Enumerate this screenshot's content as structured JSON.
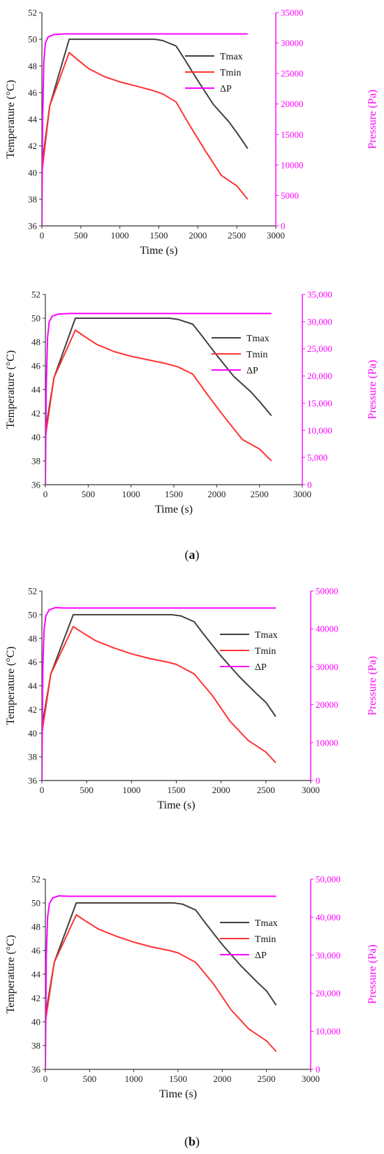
{
  "colors": {
    "tmax": "#404040",
    "tmin": "#ff3333",
    "dp": "#ff00ff",
    "axis": "#333333"
  },
  "figure_labels": {
    "a_open": "(",
    "a_letter": "a",
    "a_close": ")",
    "b_open": "(",
    "b_letter": "b",
    "b_close": ")"
  },
  "chart_data": [
    {
      "type": "line",
      "xlabel": "Time (s)",
      "ylabel": "Temperature (°C)",
      "y2label": "Pressure (Pa)",
      "xlim": [
        0,
        3000
      ],
      "ylim": [
        36,
        52
      ],
      "y2lim": [
        0,
        35000
      ],
      "xticks": [
        "0",
        "500",
        "1000",
        "1500",
        "2000",
        "2500",
        "3000"
      ],
      "yticks": [
        "36",
        "38",
        "40",
        "42",
        "44",
        "46",
        "48",
        "50",
        "52"
      ],
      "y2ticks": [
        "0",
        "5000",
        "10000",
        "15000",
        "20000",
        "25000",
        "30000",
        "35000"
      ],
      "y2tick_values": [
        0,
        5000,
        10000,
        15000,
        20000,
        25000,
        30000,
        35000
      ],
      "legend": "top-right",
      "series": [
        {
          "name": "Tmax",
          "axis": "left",
          "x": [
            0,
            100,
            350,
            600,
            1000,
            1450,
            1550,
            1720,
            1830,
            2000,
            2200,
            2400,
            2500,
            2640
          ],
          "y": [
            40.5,
            45.0,
            50.0,
            50.0,
            50.0,
            50.0,
            49.9,
            49.5,
            48.5,
            46.9,
            45.1,
            43.8,
            43.0,
            41.8
          ]
        },
        {
          "name": "Tmin",
          "axis": "left",
          "x": [
            0,
            100,
            350,
            450,
            600,
            800,
            1000,
            1200,
            1400,
            1550,
            1720,
            1900,
            2100,
            2300,
            2500,
            2640
          ],
          "y": [
            40.0,
            45.0,
            49.0,
            48.5,
            47.8,
            47.2,
            46.8,
            46.5,
            46.2,
            45.9,
            45.3,
            43.5,
            41.6,
            39.8,
            39.0,
            38.0
          ]
        },
        {
          "name": "ΔP",
          "axis": "right",
          "x": [
            0,
            10,
            25,
            45,
            80,
            150,
            300,
            2640
          ],
          "y": [
            0,
            18000,
            27000,
            30000,
            31000,
            31400,
            31500,
            31500
          ]
        }
      ]
    },
    {
      "type": "line",
      "xlabel": "Time (s)",
      "ylabel": "Temperature (°C)",
      "y2label": "Pressure (Pa)",
      "xlim": [
        0,
        3000
      ],
      "ylim": [
        36,
        52
      ],
      "y2lim": [
        0,
        35000
      ],
      "xticks": [
        "0",
        "500",
        "1000",
        "1500",
        "2000",
        "2500",
        "3000"
      ],
      "yticks": [
        "36",
        "38",
        "40",
        "42",
        "44",
        "46",
        "48",
        "50",
        "52"
      ],
      "y2ticks": [
        "0",
        "5,000",
        "10,000",
        "15,000",
        "20,000",
        "25,000",
        "30,000",
        "35,000"
      ],
      "y2tick_values": [
        0,
        5000,
        10000,
        15000,
        20000,
        25000,
        30000,
        35000
      ],
      "legend": "top-right",
      "series": [
        {
          "name": "Tmax",
          "axis": "left",
          "x": [
            0,
            100,
            350,
            600,
            1000,
            1450,
            1550,
            1720,
            1830,
            2000,
            2200,
            2400,
            2500,
            2640
          ],
          "y": [
            40.5,
            45.0,
            50.0,
            50.0,
            50.0,
            50.0,
            49.9,
            49.5,
            48.5,
            46.9,
            45.1,
            43.8,
            43.0,
            41.8
          ]
        },
        {
          "name": "Tmin",
          "axis": "left",
          "x": [
            0,
            100,
            350,
            450,
            600,
            800,
            1000,
            1200,
            1400,
            1550,
            1720,
            1900,
            2100,
            2300,
            2500,
            2640
          ],
          "y": [
            40.0,
            45.0,
            49.0,
            48.5,
            47.8,
            47.2,
            46.8,
            46.5,
            46.2,
            45.9,
            45.3,
            43.5,
            41.6,
            39.8,
            39.0,
            38.0
          ]
        },
        {
          "name": "ΔP",
          "axis": "right",
          "x": [
            0,
            10,
            25,
            45,
            80,
            150,
            300,
            2640
          ],
          "y": [
            0,
            18000,
            27000,
            30000,
            31000,
            31400,
            31500,
            31500
          ]
        }
      ]
    },
    {
      "type": "line",
      "xlabel": "Time (s)",
      "ylabel": "Temperature (°C)",
      "y2label": "Pressure (Pa)",
      "xlim": [
        0,
        3000
      ],
      "ylim": [
        36,
        52
      ],
      "y2lim": [
        0,
        50000
      ],
      "xticks": [
        "0",
        "500",
        "1000",
        "1500",
        "2000",
        "2500",
        "3000"
      ],
      "yticks": [
        "36",
        "38",
        "40",
        "42",
        "44",
        "46",
        "48",
        "50",
        "52"
      ],
      "y2ticks": [
        "0",
        "10000",
        "20000",
        "30000",
        "40000",
        "50000"
      ],
      "y2tick_values": [
        0,
        10000,
        20000,
        30000,
        40000,
        50000
      ],
      "legend": "top-right",
      "series": [
        {
          "name": "Tmax",
          "axis": "left",
          "x": [
            0,
            100,
            350,
            600,
            1000,
            1450,
            1550,
            1700,
            1800,
            2000,
            2200,
            2400,
            2500,
            2610
          ],
          "y": [
            40.5,
            45.0,
            50.0,
            50.0,
            50.0,
            50.0,
            49.9,
            49.4,
            48.4,
            46.5,
            44.8,
            43.3,
            42.6,
            41.4
          ]
        },
        {
          "name": "Tmin",
          "axis": "left",
          "x": [
            0,
            100,
            350,
            450,
            600,
            800,
            1000,
            1200,
            1400,
            1500,
            1700,
            1900,
            2100,
            2300,
            2500,
            2610
          ],
          "y": [
            40.0,
            45.0,
            49.0,
            48.5,
            47.8,
            47.2,
            46.7,
            46.3,
            46.0,
            45.8,
            45.0,
            43.2,
            41.0,
            39.4,
            38.4,
            37.5
          ]
        },
        {
          "name": "ΔP",
          "axis": "right",
          "x": [
            0,
            10,
            25,
            45,
            80,
            150,
            250,
            2610
          ],
          "y": [
            0,
            30000,
            40000,
            43500,
            45000,
            45600,
            45500,
            45500
          ]
        }
      ]
    },
    {
      "type": "line",
      "xlabel": "Time (s)",
      "ylabel": "Temperature (°C)",
      "y2label": "Pressure (Pa)",
      "xlim": [
        0,
        3000
      ],
      "ylim": [
        36,
        52
      ],
      "y2lim": [
        0,
        50000
      ],
      "xticks": [
        "0",
        "500",
        "1000",
        "1500",
        "2000",
        "2500",
        "3000"
      ],
      "yticks": [
        "36",
        "38",
        "40",
        "42",
        "44",
        "46",
        "48",
        "50",
        "52"
      ],
      "y2ticks": [
        "0",
        "10,000",
        "20,000",
        "30,000",
        "40,000",
        "50,000"
      ],
      "y2tick_values": [
        0,
        10000,
        20000,
        30000,
        40000,
        50000
      ],
      "legend": "top-right",
      "series": [
        {
          "name": "Tmax",
          "axis": "left",
          "x": [
            0,
            100,
            350,
            600,
            1000,
            1450,
            1550,
            1700,
            1800,
            2000,
            2200,
            2400,
            2500,
            2610
          ],
          "y": [
            40.5,
            45.0,
            50.0,
            50.0,
            50.0,
            50.0,
            49.9,
            49.4,
            48.4,
            46.5,
            44.8,
            43.3,
            42.6,
            41.4
          ]
        },
        {
          "name": "Tmin",
          "axis": "left",
          "x": [
            0,
            100,
            350,
            450,
            600,
            800,
            1000,
            1200,
            1400,
            1500,
            1700,
            1900,
            2100,
            2300,
            2500,
            2610
          ],
          "y": [
            40.0,
            45.0,
            49.0,
            48.5,
            47.8,
            47.2,
            46.7,
            46.3,
            46.0,
            45.8,
            45.0,
            43.2,
            41.0,
            39.4,
            38.4,
            37.5
          ]
        },
        {
          "name": "ΔP",
          "axis": "right",
          "x": [
            0,
            10,
            25,
            45,
            80,
            150,
            250,
            2610
          ],
          "y": [
            0,
            30000,
            40000,
            43500,
            45000,
            45600,
            45500,
            45500
          ]
        }
      ]
    }
  ]
}
